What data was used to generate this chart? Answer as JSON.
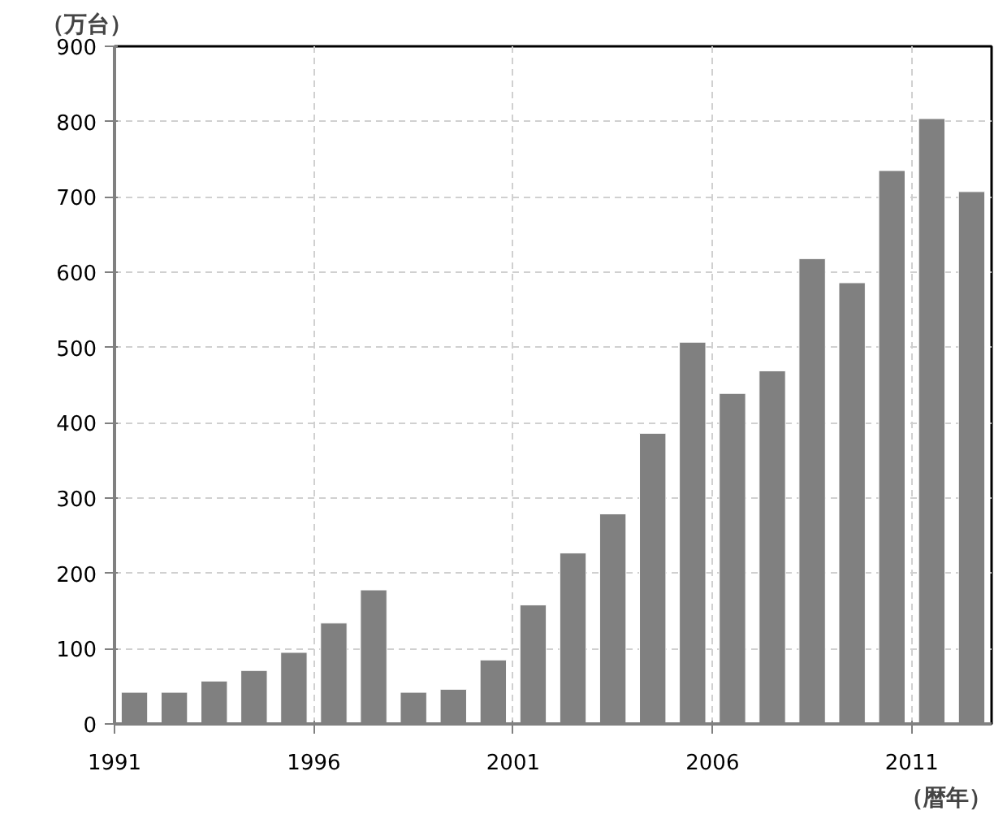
{
  "chart_data": {
    "type": "bar",
    "ylabel": "（万台）",
    "xlabel": "（暦年）",
    "categories": [
      "1991",
      null,
      null,
      null,
      null,
      "1996",
      null,
      null,
      null,
      null,
      "2001",
      null,
      null,
      null,
      null,
      "2006",
      null,
      null,
      null,
      null,
      "2011",
      null
    ],
    "values": [
      42,
      42,
      57,
      71,
      95,
      134,
      178,
      42,
      46,
      85,
      158,
      227,
      279,
      386,
      507,
      439,
      469,
      618,
      586,
      735,
      804,
      707
    ],
    "color": "#808080",
    "ylim": [
      0,
      900
    ],
    "yticks": [
      0,
      100,
      200,
      300,
      400,
      500,
      600,
      700,
      800,
      900
    ],
    "grid": true
  }
}
